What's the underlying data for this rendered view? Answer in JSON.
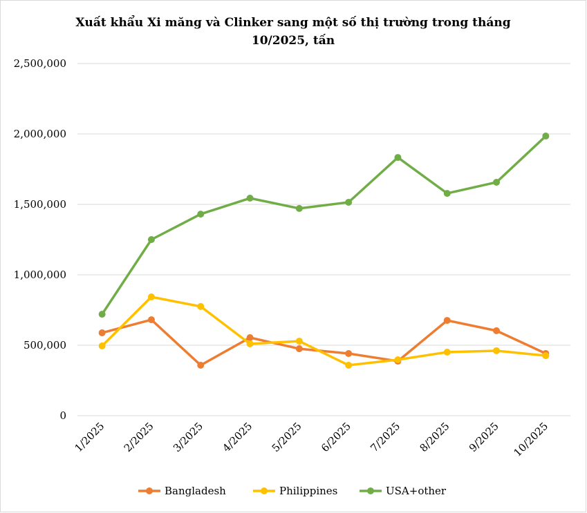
{
  "chart_data": {
    "type": "line",
    "title_lines": [
      "Xuất khẩu Xi măng và Clinker sang một số thị trường trong tháng",
      "10/2025, tấn"
    ],
    "categories": [
      "1/2025",
      "2/2025",
      "3/2025",
      "4/2025",
      "5/2025",
      "6/2025",
      "7/2025",
      "8/2025",
      "9/2025",
      "10/2025"
    ],
    "ylim": [
      0,
      2500000
    ],
    "yticks": [
      0,
      500000,
      1000000,
      1500000,
      2000000,
      2500000
    ],
    "ytick_labels": [
      "0",
      "500,000",
      "1,000,000",
      "1,500,000",
      "2,000,000",
      "2,500,000"
    ],
    "grid": true,
    "legend_position": "bottom",
    "series": [
      {
        "name": "Bangladesh",
        "color": "#ED7D31",
        "values": [
          588000,
          681000,
          358000,
          554000,
          475000,
          441000,
          387000,
          676000,
          603000,
          441000
        ]
      },
      {
        "name": "Philippines",
        "color": "#FFC000",
        "values": [
          495000,
          843000,
          775000,
          510000,
          529000,
          358000,
          397000,
          451000,
          461000,
          426000
        ]
      },
      {
        "name": "USA+other",
        "color": "#70AD47",
        "values": [
          720000,
          1250000,
          1431000,
          1544000,
          1471000,
          1515000,
          1833000,
          1578000,
          1657000,
          1985000
        ]
      }
    ]
  }
}
